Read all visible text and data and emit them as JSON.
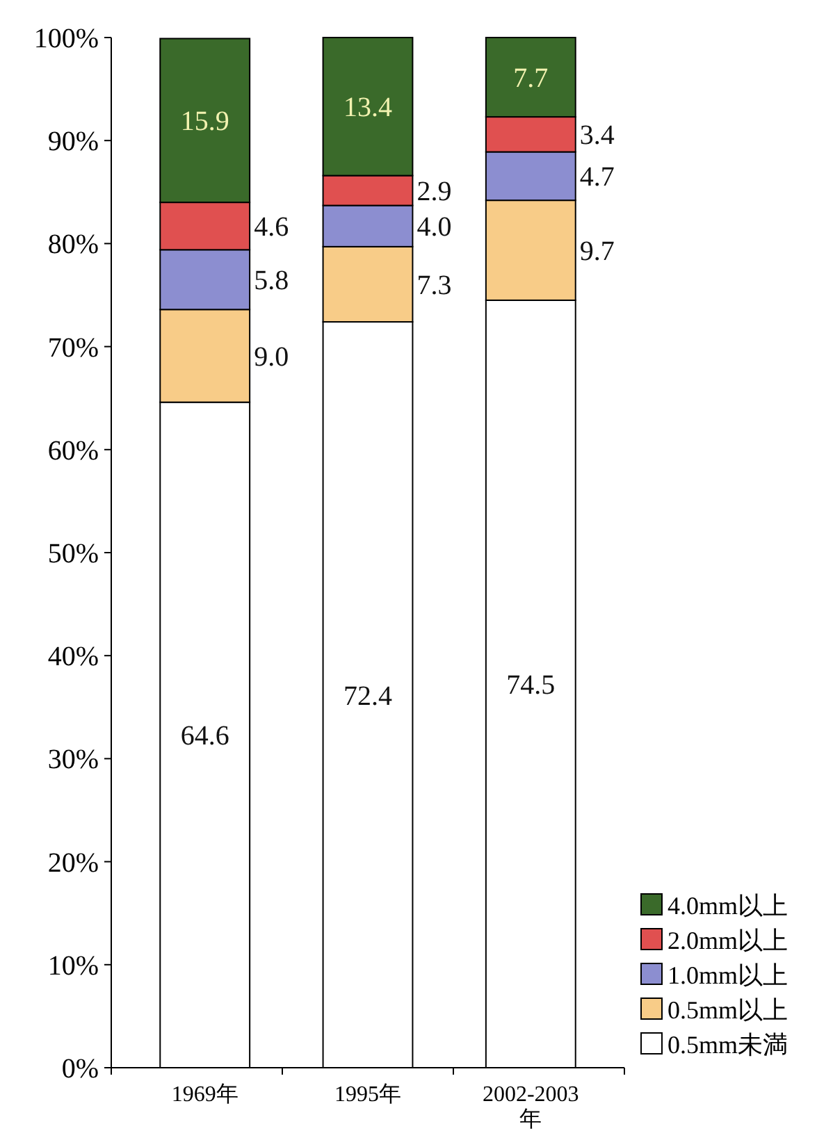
{
  "chart_data": {
    "type": "bar",
    "stacked": true,
    "categories": [
      "1969年",
      "1995年",
      "2002-2003年"
    ],
    "series": [
      {
        "name": "0.5mm未満",
        "color": "#ffffff",
        "values": [
          64.6,
          72.4,
          74.5
        ],
        "value_labels": [
          "64.6",
          "72.4",
          "74.5"
        ]
      },
      {
        "name": "0.5mm以上",
        "color": "#f8cc88",
        "values": [
          9.0,
          7.3,
          9.7
        ],
        "value_labels": [
          "9.0",
          "7.3",
          "9.7"
        ]
      },
      {
        "name": "1.0mm以上",
        "color": "#8c8ed0",
        "values": [
          5.8,
          4.0,
          4.7
        ],
        "value_labels": [
          "5.8",
          "4.0",
          "4.7"
        ]
      },
      {
        "name": "2.0mm以上",
        "color": "#e05050",
        "values": [
          4.6,
          2.9,
          3.4
        ],
        "value_labels": [
          "4.6",
          "2.9",
          "3.4"
        ]
      },
      {
        "name": "4.0mm以上",
        "color": "#3a6a2a",
        "values": [
          15.9,
          13.4,
          7.7
        ],
        "value_labels": [
          "15.9",
          "13.4",
          "7.7"
        ]
      }
    ],
    "ylim": [
      0,
      100
    ],
    "yticks": [
      {
        "value": 0,
        "label": "0%"
      },
      {
        "value": 10,
        "label": "10%"
      },
      {
        "value": 20,
        "label": "20%"
      },
      {
        "value": 30,
        "label": "30%"
      },
      {
        "value": 40,
        "label": "40%"
      },
      {
        "value": 50,
        "label": "50%"
      },
      {
        "value": 60,
        "label": "60%"
      },
      {
        "value": 70,
        "label": "70%"
      },
      {
        "value": 80,
        "label": "80%"
      },
      {
        "value": 90,
        "label": "90%"
      },
      {
        "value": 100,
        "label": "100%"
      }
    ],
    "legend": "bottom right",
    "grid": false
  }
}
